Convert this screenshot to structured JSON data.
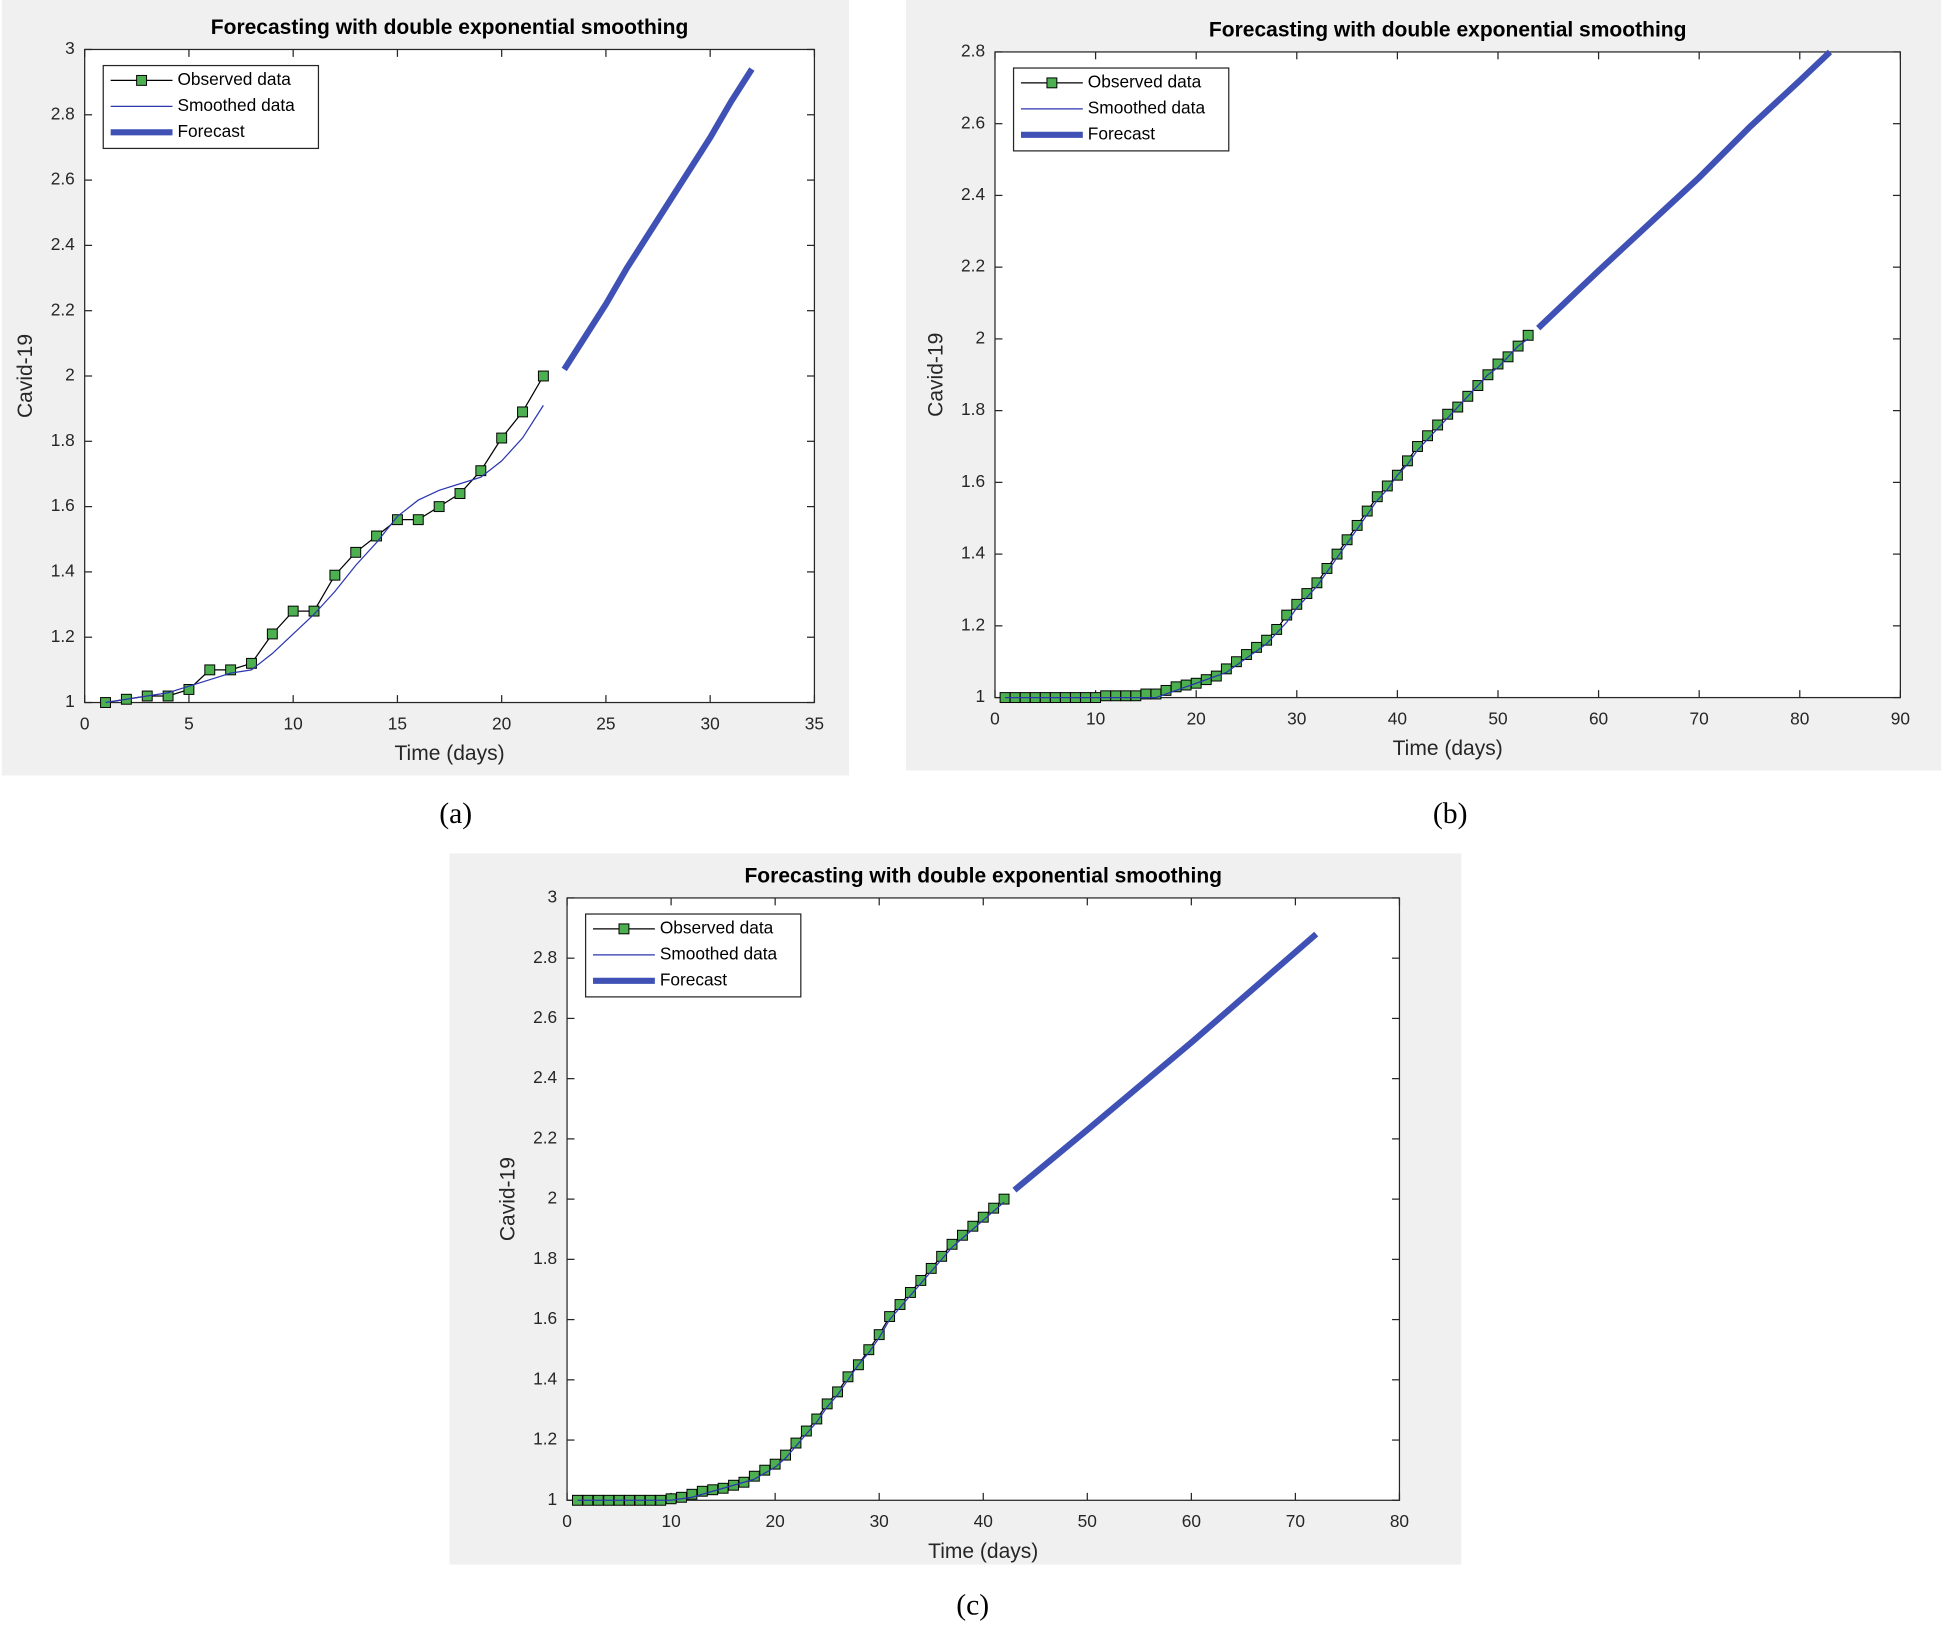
{
  "chart_data": [
    {
      "type": "line",
      "title": "Forecasting with double exponential smoothing",
      "xlabel": "Time (days)",
      "ylabel": "Cavid-19",
      "caption": "(a)",
      "xlim": [
        0,
        35
      ],
      "xticks": [
        0,
        5,
        10,
        15,
        20,
        25,
        30,
        35
      ],
      "ylim": [
        1,
        3
      ],
      "yticks": [
        1,
        1.2,
        1.4,
        1.6,
        1.8,
        2,
        2.2,
        2.4,
        2.6,
        2.8,
        3
      ],
      "legend": "upper-left",
      "grid": false,
      "series": [
        {
          "name": "Observed data",
          "color": "#000000",
          "marker_color": "#4caf50",
          "x": [
            1,
            2,
            3,
            4,
            5,
            6,
            7,
            8,
            9,
            10,
            11,
            12,
            13,
            14,
            15,
            16,
            17,
            18,
            19,
            20,
            21,
            22
          ],
          "values": [
            1.0,
            1.01,
            1.02,
            1.02,
            1.04,
            1.1,
            1.1,
            1.12,
            1.21,
            1.28,
            1.28,
            1.39,
            1.46,
            1.51,
            1.56,
            1.56,
            1.6,
            1.64,
            1.71,
            1.81,
            1.89,
            2.0
          ]
        },
        {
          "name": "Smoothed data",
          "color": "#2a36b0",
          "x": [
            1,
            2,
            3,
            4,
            5,
            6,
            7,
            8,
            9,
            10,
            11,
            12,
            13,
            14,
            15,
            16,
            17,
            18,
            19,
            20,
            21,
            22
          ],
          "values": [
            1.0,
            1.01,
            1.02,
            1.03,
            1.05,
            1.07,
            1.09,
            1.1,
            1.15,
            1.21,
            1.27,
            1.34,
            1.42,
            1.49,
            1.57,
            1.62,
            1.65,
            1.67,
            1.69,
            1.74,
            1.81,
            1.91
          ]
        },
        {
          "name": "Forecast",
          "color": "#3f51b5",
          "width": 5,
          "x": [
            23,
            24,
            25,
            26,
            27,
            28,
            29,
            30,
            31,
            32
          ],
          "values": [
            2.02,
            2.12,
            2.22,
            2.33,
            2.43,
            2.53,
            2.63,
            2.73,
            2.84,
            2.94
          ]
        }
      ]
    },
    {
      "type": "line",
      "title": "Forecasting with double exponential smoothing",
      "xlabel": "Time (days)",
      "ylabel": "Cavid-19",
      "caption": "(b)",
      "xlim": [
        0,
        90
      ],
      "xticks": [
        0,
        10,
        20,
        30,
        40,
        50,
        60,
        70,
        80,
        90
      ],
      "ylim": [
        1,
        2.8
      ],
      "yticks": [
        1,
        1.2,
        1.4,
        1.6,
        1.8,
        2,
        2.2,
        2.4,
        2.6,
        2.8
      ],
      "legend": "upper-left",
      "grid": false,
      "series": [
        {
          "name": "Observed data",
          "color": "#000000",
          "marker_color": "#4caf50",
          "x": [
            1,
            2,
            3,
            4,
            5,
            6,
            7,
            8,
            9,
            10,
            11,
            12,
            13,
            14,
            15,
            16,
            17,
            18,
            19,
            20,
            21,
            22,
            23,
            24,
            25,
            26,
            27,
            28,
            29,
            30,
            31,
            32,
            33,
            34,
            35,
            36,
            37,
            38,
            39,
            40,
            41,
            42,
            43,
            44,
            45,
            46,
            47,
            48,
            49,
            50,
            51,
            52,
            53
          ],
          "values": [
            1,
            1,
            1,
            1,
            1,
            1,
            1,
            1,
            1,
            1,
            1.005,
            1.005,
            1.005,
            1.005,
            1.01,
            1.01,
            1.02,
            1.03,
            1.035,
            1.04,
            1.05,
            1.06,
            1.08,
            1.1,
            1.12,
            1.14,
            1.16,
            1.19,
            1.23,
            1.26,
            1.29,
            1.32,
            1.36,
            1.4,
            1.44,
            1.48,
            1.52,
            1.56,
            1.59,
            1.62,
            1.66,
            1.7,
            1.73,
            1.76,
            1.79,
            1.81,
            1.84,
            1.87,
            1.9,
            1.93,
            1.95,
            1.98,
            2.01
          ]
        },
        {
          "name": "Smoothed data",
          "color": "#2a36b0",
          "x": [
            1,
            2,
            3,
            4,
            5,
            6,
            7,
            8,
            9,
            10,
            11,
            12,
            13,
            14,
            15,
            16,
            17,
            18,
            19,
            20,
            21,
            22,
            23,
            24,
            25,
            26,
            27,
            28,
            29,
            30,
            31,
            32,
            33,
            34,
            35,
            36,
            37,
            38,
            39,
            40,
            41,
            42,
            43,
            44,
            45,
            46,
            47,
            48,
            49,
            50,
            51,
            52,
            53
          ],
          "values": [
            1,
            1,
            1,
            1,
            1,
            1,
            1,
            1,
            1,
            1,
            1,
            1,
            1,
            1,
            1,
            1,
            1.01,
            1.02,
            1.03,
            1.04,
            1.05,
            1.06,
            1.07,
            1.09,
            1.11,
            1.13,
            1.15,
            1.18,
            1.21,
            1.25,
            1.28,
            1.31,
            1.35,
            1.39,
            1.43,
            1.47,
            1.51,
            1.55,
            1.58,
            1.62,
            1.65,
            1.69,
            1.72,
            1.75,
            1.78,
            1.81,
            1.84,
            1.87,
            1.9,
            1.92,
            1.95,
            1.98,
            2.0
          ]
        },
        {
          "name": "Forecast",
          "color": "#3f51b5",
          "width": 5,
          "x": [
            54,
            60,
            65,
            70,
            75,
            80,
            83
          ],
          "values": [
            2.03,
            2.19,
            2.32,
            2.45,
            2.59,
            2.72,
            2.8
          ]
        }
      ]
    },
    {
      "type": "line",
      "title": "Forecasting with double exponential smoothing",
      "xlabel": "Time (days)",
      "ylabel": "Cavid-19",
      "caption": "(c)",
      "xlim": [
        0,
        80
      ],
      "xticks": [
        0,
        10,
        20,
        30,
        40,
        50,
        60,
        70,
        80
      ],
      "ylim": [
        1,
        3
      ],
      "yticks": [
        1,
        1.2,
        1.4,
        1.6,
        1.8,
        2,
        2.2,
        2.4,
        2.6,
        2.8,
        3
      ],
      "legend": "upper-left",
      "grid": false,
      "series": [
        {
          "name": "Observed data",
          "color": "#000000",
          "marker_color": "#4caf50",
          "x": [
            1,
            2,
            3,
            4,
            5,
            6,
            7,
            8,
            9,
            10,
            11,
            12,
            13,
            14,
            15,
            16,
            17,
            18,
            19,
            20,
            21,
            22,
            23,
            24,
            25,
            26,
            27,
            28,
            29,
            30,
            31,
            32,
            33,
            34,
            35,
            36,
            37,
            38,
            39,
            40,
            41,
            42
          ],
          "values": [
            1,
            1,
            1,
            1,
            1,
            1,
            1,
            1,
            1,
            1.005,
            1.01,
            1.02,
            1.03,
            1.035,
            1.04,
            1.05,
            1.06,
            1.08,
            1.1,
            1.12,
            1.15,
            1.19,
            1.23,
            1.27,
            1.32,
            1.36,
            1.41,
            1.45,
            1.5,
            1.55,
            1.61,
            1.65,
            1.69,
            1.73,
            1.77,
            1.81,
            1.85,
            1.88,
            1.91,
            1.94,
            1.97,
            2.0
          ]
        },
        {
          "name": "Smoothed data",
          "color": "#2a36b0",
          "x": [
            1,
            2,
            3,
            4,
            5,
            6,
            7,
            8,
            9,
            10,
            11,
            12,
            13,
            14,
            15,
            16,
            17,
            18,
            19,
            20,
            21,
            22,
            23,
            24,
            25,
            26,
            27,
            28,
            29,
            30,
            31,
            32,
            33,
            34,
            35,
            36,
            37,
            38,
            39,
            40,
            41,
            42
          ],
          "values": [
            1,
            1,
            1,
            1,
            1,
            1,
            1,
            1,
            1,
            1,
            1.005,
            1.01,
            1.02,
            1.03,
            1.04,
            1.05,
            1.06,
            1.07,
            1.09,
            1.11,
            1.14,
            1.18,
            1.22,
            1.26,
            1.31,
            1.35,
            1.4,
            1.45,
            1.49,
            1.54,
            1.6,
            1.64,
            1.68,
            1.72,
            1.76,
            1.8,
            1.84,
            1.87,
            1.9,
            1.93,
            1.96,
            1.99
          ]
        },
        {
          "name": "Forecast",
          "color": "#3f51b5",
          "width": 5,
          "x": [
            43,
            50,
            60,
            70,
            72
          ],
          "values": [
            2.03,
            2.23,
            2.52,
            2.82,
            2.88
          ]
        }
      ]
    }
  ]
}
